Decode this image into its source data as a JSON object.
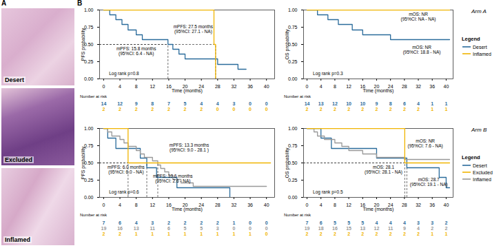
{
  "panel_labels": [
    "A",
    "B"
  ],
  "panel_a": {
    "images": [
      "Desert",
      "Excluded",
      "Inflamed"
    ]
  },
  "arms": [
    {
      "label": "Arm A",
      "legend": {
        "title": "Legend",
        "entries": [
          {
            "name": "Desert",
            "color": "#2a6b9b"
          },
          {
            "name": "Inflamed",
            "color": "#f0b400"
          }
        ]
      }
    },
    {
      "label": "Arm B",
      "legend": {
        "title": "Legend",
        "entries": [
          {
            "name": "Desert",
            "color": "#2a6b9b"
          },
          {
            "name": "Excluded",
            "color": "#f0b400"
          },
          {
            "name": "Inflamed",
            "color": "#999999"
          }
        ]
      }
    }
  ],
  "chart_data": [
    {
      "type": "line",
      "line_style": "step",
      "xlabel": "Time (months)",
      "ylabel": "PFS probability",
      "xlim": [
        -1,
        42
      ],
      "xticks": [
        0,
        4,
        8,
        12,
        16,
        20,
        24,
        28,
        32,
        36,
        40
      ],
      "ylim": [
        0,
        1
      ],
      "yticks": [
        {
          "value": 0,
          "label": "0.00"
        },
        {
          "value": 0.25,
          "label": "0.25"
        },
        {
          "value": 0.5,
          "label": "0.50"
        },
        {
          "value": 0.75,
          "label": "0.75"
        },
        {
          "value": 1,
          "label": "1.00"
        }
      ],
      "series": [
        {
          "name": "Desert",
          "color": "#2a6b9b",
          "x": [
            0,
            1.5,
            3,
            4.5,
            6,
            8,
            9.5,
            15.8,
            17,
            18.5,
            20,
            28,
            33,
            35
          ],
          "values": [
            1,
            0.93,
            0.86,
            0.79,
            0.71,
            0.64,
            0.57,
            0.5,
            0.43,
            0.36,
            0.29,
            0.21,
            0.14,
            0.14
          ]
        },
        {
          "name": "Inflamed",
          "color": "#f0b400",
          "x": [
            0,
            27.1,
            27.5
          ],
          "values": [
            1,
            0.5,
            0
          ]
        }
      ],
      "median_lines": [
        15.8,
        27.5
      ],
      "annotations": [
        {
          "text": "mPFS: 27.5 months\n(95%CI: 27.1 - NA)",
          "x": 22,
          "y": 0.72
        },
        {
          "text": "mPFS: 15.8 months\n(95%CI: 6.4 - NA)",
          "x": 8,
          "y": 0.4
        },
        {
          "text": "Log rank p=0.8",
          "x": 5,
          "y": 0.08
        }
      ],
      "number_at_risk": {
        "title": "Number at risk",
        "rows": [
          {
            "color": "#2a6b9b",
            "values": [
              14,
              12,
              9,
              8,
              7,
              5,
              4,
              4,
              3,
              0,
              0
            ]
          },
          {
            "color": "#f0b400",
            "values": [
              2,
              2,
              2,
              2,
              2,
              2,
              2,
              0,
              0,
              0,
              0
            ]
          }
        ]
      }
    },
    {
      "type": "line",
      "line_style": "step",
      "xlabel": "Time (months)",
      "ylabel": "OS probability",
      "xlim": [
        -1,
        42
      ],
      "xticks": [
        0,
        4,
        8,
        12,
        16,
        20,
        24,
        28,
        32,
        36,
        40
      ],
      "ylim": [
        0,
        1
      ],
      "yticks": [
        {
          "value": 0,
          "label": "0.00"
        },
        {
          "value": 0.25,
          "label": "0.25"
        },
        {
          "value": 0.5,
          "label": "0.50"
        },
        {
          "value": 0.75,
          "label": "0.75"
        },
        {
          "value": 1,
          "label": "1.00"
        }
      ],
      "series": [
        {
          "name": "Desert",
          "color": "#2a6b9b",
          "x": [
            0,
            3,
            6,
            9,
            13,
            16,
            24,
            41
          ],
          "values": [
            1,
            0.93,
            0.86,
            0.79,
            0.71,
            0.64,
            0.57,
            0.57
          ]
        },
        {
          "name": "Inflamed",
          "color": "#f0b400",
          "x": [
            0,
            41
          ],
          "values": [
            1,
            1
          ]
        }
      ],
      "median_lines": [],
      "annotations": [
        {
          "text": "mOS: NR\n(95%CI: NA - NA)",
          "x": 32,
          "y": 0.9
        },
        {
          "text": "mOS: NR\n(95%CI: 18.8 - NA)",
          "x": 33,
          "y": 0.42
        },
        {
          "text": "Log rank p=0.3",
          "x": 6,
          "y": 0.08
        }
      ],
      "number_at_risk": {
        "title": "Number at risk",
        "rows": [
          {
            "color": "#2a6b9b",
            "values": [
              14,
              13,
              12,
              10,
              10,
              9,
              8,
              6,
              4,
              1,
              1
            ]
          },
          {
            "color": "#f0b400",
            "values": [
              2,
              2,
              2,
              2,
              2,
              2,
              2,
              2,
              2,
              1,
              1
            ]
          }
        ]
      }
    },
    {
      "type": "line",
      "line_style": "step",
      "xlabel": "Time (months)",
      "ylabel": "PFS probability",
      "xlim": [
        -1,
        42
      ],
      "xticks": [
        0,
        4,
        8,
        12,
        16,
        20,
        24,
        28,
        32,
        36,
        40
      ],
      "ylim": [
        0,
        1
      ],
      "yticks": [
        {
          "value": 0,
          "label": "0.00"
        },
        {
          "value": 0.25,
          "label": "0.25"
        },
        {
          "value": 0.5,
          "label": "0.50"
        },
        {
          "value": 0.75,
          "label": "0.75"
        },
        {
          "value": 1,
          "label": "1.00"
        }
      ],
      "series": [
        {
          "name": "Desert",
          "color": "#2a6b9b",
          "x": [
            0,
            1,
            3,
            9,
            10.6,
            13,
            18,
            31
          ],
          "values": [
            1,
            0.86,
            0.71,
            0.57,
            0.43,
            0.29,
            0.14,
            0
          ]
        },
        {
          "name": "Inflamed",
          "color": "#999999",
          "x": [
            0,
            1,
            2,
            4,
            5,
            6,
            8,
            9,
            10,
            12,
            13.3,
            14,
            15,
            16,
            17,
            19,
            22,
            40
          ],
          "values": [
            1,
            0.95,
            0.89,
            0.84,
            0.79,
            0.74,
            0.68,
            0.63,
            0.58,
            0.53,
            0.47,
            0.42,
            0.37,
            0.32,
            0.26,
            0.21,
            0.16,
            0.16
          ]
        },
        {
          "name": "Excluded",
          "color": "#f0b400",
          "x": [
            0,
            6,
            41
          ],
          "values": [
            1,
            0.5,
            0.5
          ]
        }
      ],
      "median_lines": [
        6.0,
        10.6,
        13.3
      ],
      "annotations": [
        {
          "text": "mPFS: 13.3 months\n(95%CI: 9.0 - 28.1 )",
          "x": 21,
          "y": 0.72
        },
        {
          "text": "mPFS: 6.0 months\n(95%CI: 6.0 - NA)",
          "x": 5.5,
          "y": 0.4
        },
        {
          "text": "mPFS: 10.6 months\n(95%CI: 2.6 - NA)",
          "x": 17,
          "y": 0.27
        },
        {
          "text": "Log rank p=0.6",
          "x": 5,
          "y": 0.08
        }
      ],
      "number_at_risk": {
        "title": "Number at risk",
        "rows": [
          {
            "color": "#2a6b9b",
            "values": [
              7,
              6,
              4,
              3,
              2,
              2,
              2,
              2,
              1,
              0,
              0
            ]
          },
          {
            "color": "#999999",
            "values": [
              19,
              16,
              13,
              11,
              6,
              5,
              5,
              3,
              0,
              0,
              0
            ]
          },
          {
            "color": "#f0b400",
            "values": [
              2,
              2,
              1,
              1,
              1,
              1,
              1,
              1,
              1,
              1,
              0
            ]
          }
        ]
      }
    },
    {
      "type": "line",
      "line_style": "step",
      "xlabel": "Time (months)",
      "ylabel": "OS probability",
      "xlim": [
        -1,
        42
      ],
      "xticks": [
        0,
        4,
        8,
        12,
        16,
        20,
        24,
        28,
        32,
        36,
        40
      ],
      "ylim": [
        0,
        1
      ],
      "yticks": [
        {
          "value": 0,
          "label": "0.00"
        },
        {
          "value": 0.25,
          "label": "0.25"
        },
        {
          "value": 0.5,
          "label": "0.50"
        },
        {
          "value": 0.75,
          "label": "0.75"
        },
        {
          "value": 1,
          "label": "1.00"
        }
      ],
      "series": [
        {
          "name": "Desert",
          "color": "#2a6b9b",
          "x": [
            0,
            4,
            7,
            20,
            28.7,
            38,
            40,
            41
          ],
          "values": [
            1,
            0.86,
            0.71,
            0.57,
            0.43,
            0.29,
            0.14,
            0.14
          ]
        },
        {
          "name": "Inflamed",
          "color": "#999999",
          "x": [
            0,
            2,
            3,
            5,
            8,
            10,
            12,
            16,
            20,
            28,
            41
          ],
          "values": [
            1,
            0.95,
            0.89,
            0.84,
            0.79,
            0.74,
            0.68,
            0.63,
            0.58,
            0.55,
            0.55
          ]
        },
        {
          "name": "Excluded",
          "color": "#f0b400",
          "x": [
            0,
            28.1,
            41
          ],
          "values": [
            1,
            0.5,
            0.5
          ]
        }
      ],
      "median_lines": [
        28.1,
        28.7
      ],
      "annotations": [
        {
          "text": "mOS: NR\n(95%CI: 7.6 - NA)",
          "x": 34,
          "y": 0.78
        },
        {
          "text": "mOS: 28.1\n(95%CI: 28.1 - NA)",
          "x": 22,
          "y": 0.4
        },
        {
          "text": "mOS: 28.7\n(95%CI: 19.1 - NA)",
          "x": 35,
          "y": 0.22
        },
        {
          "text": "Log rank p=0.5",
          "x": 6,
          "y": 0.08
        }
      ],
      "number_at_risk": {
        "title": "Number at risk",
        "rows": [
          {
            "color": "#2a6b9b",
            "values": [
              7,
              6,
              5,
              5,
              5,
              4,
              4,
              4,
              3,
              3,
              2
            ]
          },
          {
            "color": "#999999",
            "values": [
              19,
              18,
              16,
              15,
              13,
              12,
              11,
              9,
              4,
              2,
              2
            ]
          },
          {
            "color": "#f0b400",
            "values": [
              2,
              2,
              2,
              2,
              2,
              2,
              2,
              2,
              2,
              1,
              1
            ]
          }
        ]
      }
    }
  ]
}
